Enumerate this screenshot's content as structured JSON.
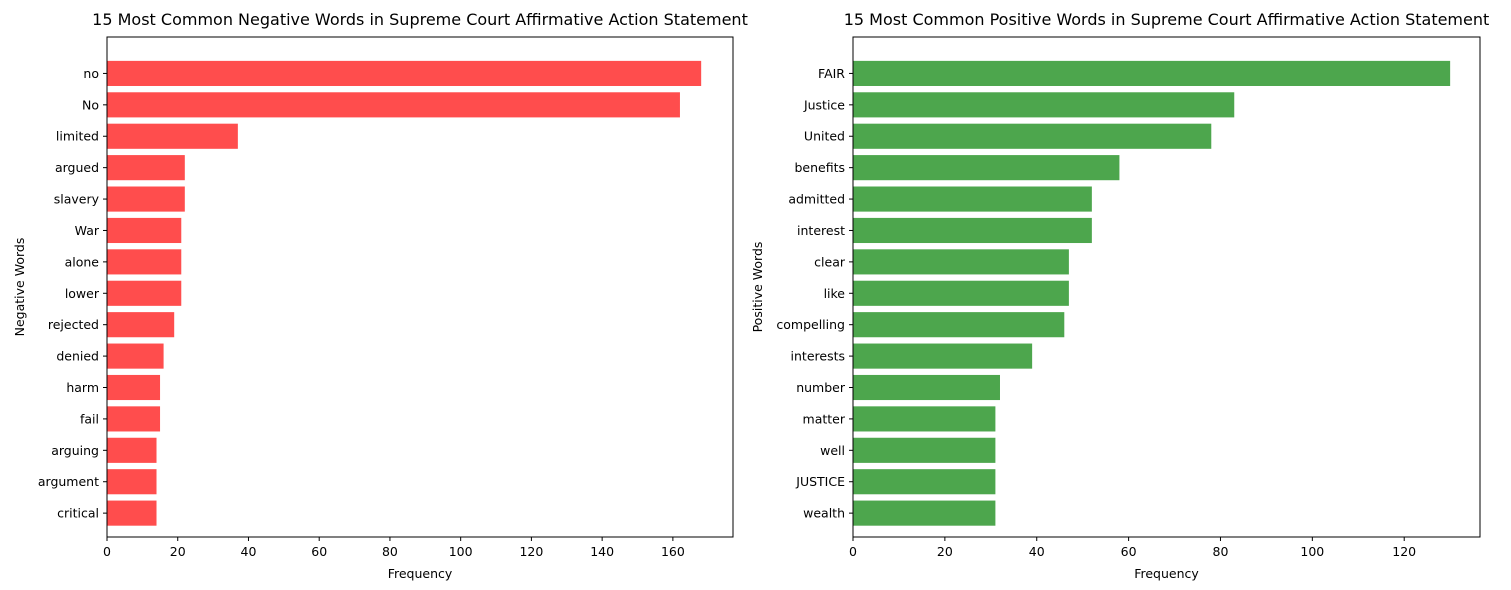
{
  "chart_data": [
    {
      "type": "bar",
      "orientation": "horizontal",
      "title": "15 Most Common Negative Words in Supreme Court Affirmative Action Statement",
      "xlabel": "Frequency",
      "ylabel": "Negative Words",
      "color": "#ff4d4d",
      "xlim": [
        0,
        177
      ],
      "xticks": [
        0,
        20,
        40,
        60,
        80,
        100,
        120,
        140,
        160
      ],
      "grid": false,
      "categories": [
        "no",
        "No",
        "limited",
        "argued",
        "slavery",
        "War",
        "alone",
        "lower",
        "rejected",
        "denied",
        "harm",
        "fail",
        "arguing",
        "argument",
        "critical"
      ],
      "values": [
        168,
        162,
        37,
        22,
        22,
        21,
        21,
        21,
        19,
        16,
        15,
        15,
        14,
        14,
        14
      ]
    },
    {
      "type": "bar",
      "orientation": "horizontal",
      "title": "15 Most Common Positive Words in Supreme Court Affirmative Action Statement",
      "xlabel": "Frequency",
      "ylabel": "Positive Words",
      "color": "#4da64d",
      "xlim": [
        0,
        136.5
      ],
      "xticks": [
        0,
        20,
        40,
        60,
        80,
        100,
        120
      ],
      "grid": false,
      "categories": [
        "FAIR",
        "Justice",
        "United",
        "benefits",
        "admitted",
        "interest",
        "clear",
        "like",
        "compelling",
        "interests",
        "number",
        "matter",
        "well",
        "JUSTICE",
        "wealth"
      ],
      "values": [
        130,
        83,
        78,
        58,
        52,
        52,
        47,
        47,
        46,
        39,
        32,
        31,
        31,
        31,
        31
      ]
    }
  ]
}
